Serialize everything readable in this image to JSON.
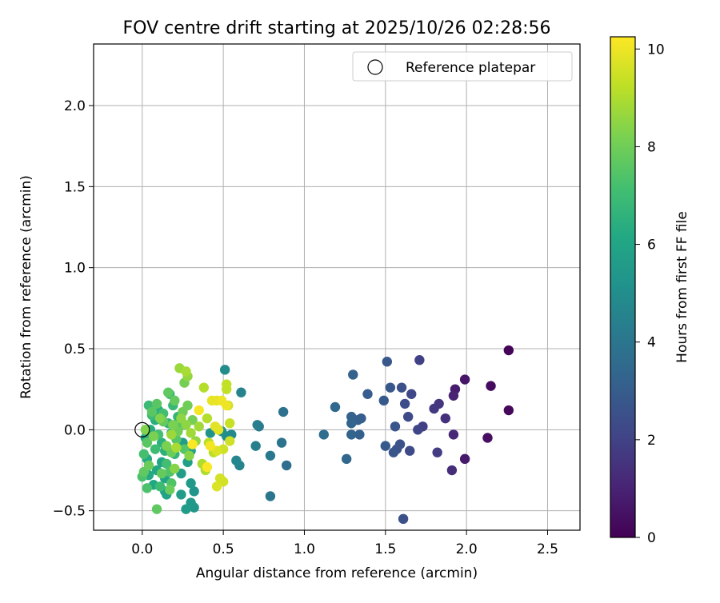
{
  "chart_data": {
    "type": "scatter",
    "title": "FOV centre drift starting at 2025/10/26 02:28:56",
    "xlabel": "Angular distance from reference (arcmin)",
    "ylabel": "Rotation from reference (arcmin)",
    "xlim": [
      -0.3,
      2.7
    ],
    "ylim": [
      -0.62,
      2.38
    ],
    "xticks": [
      0.0,
      0.5,
      1.0,
      1.5,
      2.0,
      2.5
    ],
    "xtick_labels": [
      "0.0",
      "0.5",
      "1.0",
      "1.5",
      "2.0",
      "2.5"
    ],
    "yticks": [
      -0.5,
      0.0,
      0.5,
      1.0,
      1.5,
      2.0
    ],
    "ytick_labels": [
      "−0.5",
      "0.0",
      "0.5",
      "1.0",
      "1.5",
      "2.0"
    ],
    "grid": true,
    "legend": {
      "position": "top-right",
      "label": "Reference platepar"
    },
    "reference_point": {
      "x": 0.0,
      "y": 0.0
    },
    "colorbar": {
      "label": "Hours from first FF file",
      "colormap": "viridis",
      "range": [
        0,
        10.25
      ],
      "ticks": [
        0,
        2,
        4,
        6,
        8,
        10
      ],
      "tick_labels": [
        "0",
        "2",
        "4",
        "6",
        "8",
        "10"
      ]
    },
    "points": [
      {
        "x": 2.26,
        "y": 0.49,
        "h": 0.1
      },
      {
        "x": 2.26,
        "y": 0.12,
        "h": 0.2
      },
      {
        "x": 2.15,
        "y": 0.27,
        "h": 0.3
      },
      {
        "x": 2.13,
        "y": -0.05,
        "h": 0.4
      },
      {
        "x": 1.99,
        "y": 0.31,
        "h": 0.6
      },
      {
        "x": 1.99,
        "y": -0.18,
        "h": 0.7
      },
      {
        "x": 1.93,
        "y": 0.25,
        "h": 0.8
      },
      {
        "x": 1.92,
        "y": 0.21,
        "h": 1.0
      },
      {
        "x": 1.92,
        "y": -0.03,
        "h": 1.2
      },
      {
        "x": 1.91,
        "y": -0.25,
        "h": 1.3
      },
      {
        "x": 1.87,
        "y": 0.07,
        "h": 1.4
      },
      {
        "x": 1.83,
        "y": 0.16,
        "h": 1.6
      },
      {
        "x": 1.8,
        "y": 0.13,
        "h": 1.7
      },
      {
        "x": 1.82,
        "y": -0.14,
        "h": 1.8
      },
      {
        "x": 1.73,
        "y": 0.02,
        "h": 1.9
      },
      {
        "x": 1.71,
        "y": 0.43,
        "h": 2.0
      },
      {
        "x": 1.7,
        "y": 0.0,
        "h": 2.1
      },
      {
        "x": 1.66,
        "y": 0.22,
        "h": 2.2
      },
      {
        "x": 1.64,
        "y": 0.08,
        "h": 2.3
      },
      {
        "x": 1.65,
        "y": -0.13,
        "h": 2.3
      },
      {
        "x": 1.62,
        "y": 0.16,
        "h": 2.4
      },
      {
        "x": 1.6,
        "y": 0.26,
        "h": 2.5
      },
      {
        "x": 1.61,
        "y": -0.55,
        "h": 2.5
      },
      {
        "x": 1.59,
        "y": -0.09,
        "h": 2.6
      },
      {
        "x": 1.57,
        "y": -0.12,
        "h": 2.6
      },
      {
        "x": 1.55,
        "y": -0.14,
        "h": 2.7
      },
      {
        "x": 1.56,
        "y": 0.02,
        "h": 2.7
      },
      {
        "x": 1.53,
        "y": 0.26,
        "h": 2.8
      },
      {
        "x": 1.51,
        "y": 0.42,
        "h": 2.8
      },
      {
        "x": 1.49,
        "y": 0.18,
        "h": 2.9
      },
      {
        "x": 1.5,
        "y": -0.1,
        "h": 2.9
      },
      {
        "x": 1.39,
        "y": 0.22,
        "h": 3.0
      },
      {
        "x": 1.35,
        "y": 0.07,
        "h": 3.0
      },
      {
        "x": 1.34,
        "y": -0.03,
        "h": 3.1
      },
      {
        "x": 1.33,
        "y": 0.06,
        "h": 3.1
      },
      {
        "x": 1.3,
        "y": 0.34,
        "h": 3.2
      },
      {
        "x": 1.29,
        "y": 0.08,
        "h": 3.2
      },
      {
        "x": 1.29,
        "y": 0.04,
        "h": 3.3
      },
      {
        "x": 1.29,
        "y": -0.03,
        "h": 3.3
      },
      {
        "x": 1.26,
        "y": -0.18,
        "h": 3.4
      },
      {
        "x": 1.19,
        "y": 0.14,
        "h": 3.5
      },
      {
        "x": 1.12,
        "y": -0.03,
        "h": 3.6
      },
      {
        "x": 0.89,
        "y": -0.22,
        "h": 3.7
      },
      {
        "x": 0.87,
        "y": 0.11,
        "h": 3.8
      },
      {
        "x": 0.86,
        "y": -0.08,
        "h": 3.9
      },
      {
        "x": 0.79,
        "y": -0.41,
        "h": 4.0
      },
      {
        "x": 0.79,
        "y": -0.16,
        "h": 4.1
      },
      {
        "x": 0.72,
        "y": 0.02,
        "h": 4.2
      },
      {
        "x": 0.71,
        "y": 0.03,
        "h": 4.3
      },
      {
        "x": 0.7,
        "y": -0.1,
        "h": 4.4
      },
      {
        "x": 0.61,
        "y": 0.23,
        "h": 4.5
      },
      {
        "x": 0.6,
        "y": -0.22,
        "h": 4.6
      },
      {
        "x": 0.58,
        "y": -0.19,
        "h": 4.7
      },
      {
        "x": 0.55,
        "y": -0.03,
        "h": 4.8
      },
      {
        "x": 0.51,
        "y": 0.37,
        "h": 4.9
      },
      {
        "x": 0.52,
        "y": -0.04,
        "h": 5.0
      },
      {
        "x": 0.49,
        "y": -0.01,
        "h": 5.1
      },
      {
        "x": 0.42,
        "y": -0.02,
        "h": 5.2
      },
      {
        "x": 0.32,
        "y": -0.38,
        "h": 5.3
      },
      {
        "x": 0.32,
        "y": -0.48,
        "h": 5.4
      },
      {
        "x": 0.3,
        "y": -0.45,
        "h": 5.5
      },
      {
        "x": 0.3,
        "y": -0.33,
        "h": 5.5
      },
      {
        "x": 0.27,
        "y": -0.49,
        "h": 5.6
      },
      {
        "x": 0.24,
        "y": -0.4,
        "h": 5.6
      },
      {
        "x": 0.24,
        "y": -0.27,
        "h": 5.7
      },
      {
        "x": 0.25,
        "y": -0.08,
        "h": 5.7
      },
      {
        "x": 0.28,
        "y": -0.2,
        "h": 5.8
      },
      {
        "x": 0.3,
        "y": -0.13,
        "h": 5.8
      },
      {
        "x": 0.15,
        "y": -0.4,
        "h": 5.9
      },
      {
        "x": 0.14,
        "y": -0.38,
        "h": 5.9
      },
      {
        "x": 0.14,
        "y": -0.3,
        "h": 6.0
      },
      {
        "x": 0.12,
        "y": -0.2,
        "h": 6.0
      },
      {
        "x": 0.09,
        "y": -0.25,
        "h": 6.1
      },
      {
        "x": 0.07,
        "y": -0.34,
        "h": 6.1
      },
      {
        "x": 0.04,
        "y": -0.28,
        "h": 6.2
      },
      {
        "x": 0.03,
        "y": -0.18,
        "h": 6.2
      },
      {
        "x": 0.02,
        "y": -0.05,
        "h": 6.3
      },
      {
        "x": 0.05,
        "y": 0.0,
        "h": 6.3
      },
      {
        "x": 0.08,
        "y": 0.06,
        "h": 6.4
      },
      {
        "x": 0.1,
        "y": 0.12,
        "h": 6.4
      },
      {
        "x": 0.12,
        "y": -0.08,
        "h": 6.5
      },
      {
        "x": 0.14,
        "y": -0.13,
        "h": 6.5
      },
      {
        "x": 0.16,
        "y": 0.04,
        "h": 6.6
      },
      {
        "x": 0.18,
        "y": -0.02,
        "h": 6.6
      },
      {
        "x": 0.2,
        "y": -0.15,
        "h": 6.7
      },
      {
        "x": 0.22,
        "y": 0.08,
        "h": 6.7
      },
      {
        "x": 0.19,
        "y": 0.15,
        "h": 6.8
      },
      {
        "x": 0.17,
        "y": 0.22,
        "h": 6.8
      },
      {
        "x": 0.06,
        "y": 0.09,
        "h": 6.9
      },
      {
        "x": 0.04,
        "y": 0.15,
        "h": 6.9
      },
      {
        "x": 0.08,
        "y": -0.12,
        "h": 7.0
      },
      {
        "x": 0.11,
        "y": -0.35,
        "h": 7.0
      },
      {
        "x": 0.15,
        "y": -0.21,
        "h": 7.1
      },
      {
        "x": 0.13,
        "y": 0.1,
        "h": 7.1
      },
      {
        "x": 0.1,
        "y": -0.03,
        "h": 7.2
      },
      {
        "x": 0.01,
        "y": -0.15,
        "h": 7.2
      },
      {
        "x": 0.0,
        "y": -0.29,
        "h": 7.3
      },
      {
        "x": 0.03,
        "y": -0.36,
        "h": 7.3
      },
      {
        "x": 0.18,
        "y": -0.33,
        "h": 7.4
      },
      {
        "x": 0.17,
        "y": -0.26,
        "h": 7.4
      },
      {
        "x": 0.21,
        "y": -0.06,
        "h": 7.5
      },
      {
        "x": 0.23,
        "y": 0.02,
        "h": 7.5
      },
      {
        "x": 0.26,
        "y": -0.12,
        "h": 7.5
      },
      {
        "x": 0.09,
        "y": 0.16,
        "h": 7.6
      },
      {
        "x": 0.06,
        "y": 0.11,
        "h": 7.6
      },
      {
        "x": 0.03,
        "y": -0.08,
        "h": 7.6
      },
      {
        "x": 0.01,
        "y": -0.26,
        "h": 7.7
      },
      {
        "x": 0.09,
        "y": -0.49,
        "h": 7.7
      },
      {
        "x": 0.16,
        "y": 0.23,
        "h": 7.7
      },
      {
        "x": 0.2,
        "y": 0.18,
        "h": 7.8
      },
      {
        "x": 0.13,
        "y": 0.05,
        "h": 7.8
      },
      {
        "x": 0.12,
        "y": -0.27,
        "h": 7.8
      },
      {
        "x": 0.17,
        "y": -0.37,
        "h": 7.9
      },
      {
        "x": 0.18,
        "y": -0.14,
        "h": 7.9
      },
      {
        "x": 0.04,
        "y": -0.22,
        "h": 7.9
      },
      {
        "x": 0.22,
        "y": -0.01,
        "h": 8.0
      },
      {
        "x": 0.25,
        "y": 0.11,
        "h": 8.0
      },
      {
        "x": 0.28,
        "y": 0.15,
        "h": 8.0
      },
      {
        "x": 0.31,
        "y": 0.06,
        "h": 8.1
      },
      {
        "x": 0.26,
        "y": 0.29,
        "h": 8.1
      },
      {
        "x": 0.19,
        "y": 0.03,
        "h": 8.2
      },
      {
        "x": 0.15,
        "y": -0.1,
        "h": 8.2
      },
      {
        "x": 0.07,
        "y": -0.04,
        "h": 8.2
      },
      {
        "x": 0.02,
        "y": 0.0,
        "h": 8.3
      },
      {
        "x": 0.11,
        "y": 0.07,
        "h": 8.3
      },
      {
        "x": 0.2,
        "y": -0.24,
        "h": 8.4
      },
      {
        "x": 0.29,
        "y": -0.16,
        "h": 8.4
      },
      {
        "x": 0.27,
        "y": 0.03,
        "h": 8.5
      },
      {
        "x": 0.24,
        "y": 0.07,
        "h": 8.5
      },
      {
        "x": 0.33,
        "y": -0.07,
        "h": 8.6
      },
      {
        "x": 0.28,
        "y": 0.33,
        "h": 8.6
      },
      {
        "x": 0.23,
        "y": 0.38,
        "h": 8.7
      },
      {
        "x": 0.18,
        "y": -0.03,
        "h": 8.7
      },
      {
        "x": 0.3,
        "y": -0.02,
        "h": 8.8
      },
      {
        "x": 0.35,
        "y": 0.02,
        "h": 8.8
      },
      {
        "x": 0.27,
        "y": 0.36,
        "h": 8.9
      },
      {
        "x": 0.21,
        "y": -0.11,
        "h": 8.9
      },
      {
        "x": 0.39,
        "y": -0.25,
        "h": 9.0
      },
      {
        "x": 0.37,
        "y": -0.21,
        "h": 9.0
      },
      {
        "x": 0.38,
        "y": 0.26,
        "h": 9.1
      },
      {
        "x": 0.4,
        "y": 0.07,
        "h": 9.1
      },
      {
        "x": 0.41,
        "y": -0.08,
        "h": 9.2
      },
      {
        "x": 0.44,
        "y": -0.14,
        "h": 9.2
      },
      {
        "x": 0.52,
        "y": 0.25,
        "h": 9.3
      },
      {
        "x": 0.52,
        "y": 0.28,
        "h": 9.3
      },
      {
        "x": 0.53,
        "y": 0.15,
        "h": 9.4
      },
      {
        "x": 0.54,
        "y": 0.04,
        "h": 9.4
      },
      {
        "x": 0.54,
        "y": -0.07,
        "h": 9.5
      },
      {
        "x": 0.5,
        "y": -0.12,
        "h": 9.5
      },
      {
        "x": 0.48,
        "y": -0.3,
        "h": 9.6
      },
      {
        "x": 0.5,
        "y": -0.32,
        "h": 9.6
      },
      {
        "x": 0.46,
        "y": -0.35,
        "h": 9.7
      },
      {
        "x": 0.46,
        "y": -0.13,
        "h": 9.7
      },
      {
        "x": 0.47,
        "y": 0.0,
        "h": 9.8
      },
      {
        "x": 0.45,
        "y": 0.02,
        "h": 9.8
      },
      {
        "x": 0.43,
        "y": 0.18,
        "h": 9.9
      },
      {
        "x": 0.46,
        "y": 0.18,
        "h": 9.9
      },
      {
        "x": 0.49,
        "y": 0.18,
        "h": 10.0
      },
      {
        "x": 0.52,
        "y": 0.15,
        "h": 10.0
      },
      {
        "x": 0.42,
        "y": -0.1,
        "h": 10.1
      },
      {
        "x": 0.35,
        "y": 0.12,
        "h": 10.1
      },
      {
        "x": 0.31,
        "y": -0.09,
        "h": 10.2
      },
      {
        "x": 0.4,
        "y": -0.23,
        "h": 10.2
      }
    ]
  }
}
